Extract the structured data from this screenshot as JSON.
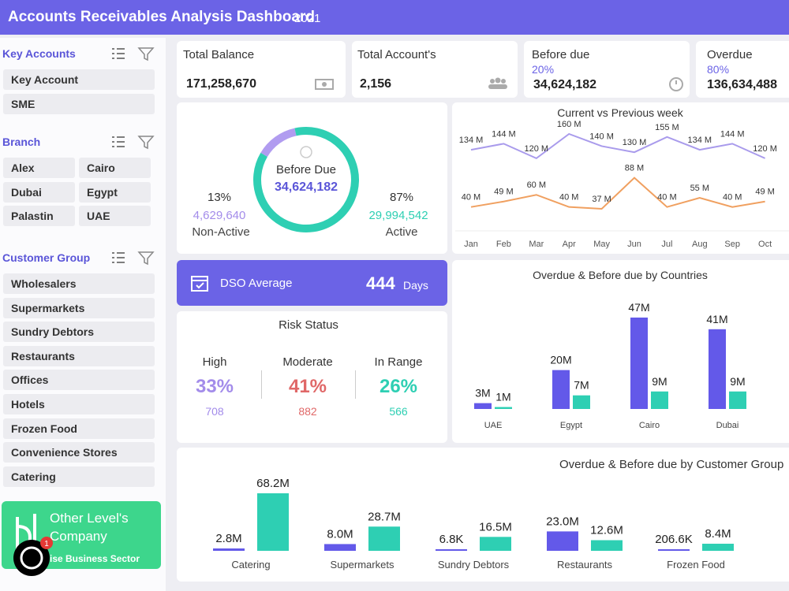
{
  "header": {
    "title": "Accounts Receivables Analysis Dashboard",
    "year": "2021"
  },
  "filters": [
    {
      "title": "Key Accounts",
      "items": [
        "Key Account",
        "SME"
      ]
    },
    {
      "title": "Branch",
      "items": [
        "Alex",
        "Cairo",
        "Dubai",
        "Egypt",
        "Palastin",
        "UAE"
      ]
    },
    {
      "title": "Customer Group",
      "items": [
        "Wholesalers",
        "Supermarkets",
        "Sundry Debtors",
        "Restaurants",
        "Offices",
        "Hotels",
        "Frozen Food",
        "Convenience Stores",
        "Catering"
      ]
    }
  ],
  "brand": {
    "name_line1": "Other Level's",
    "name_line2": "Company",
    "tagline": "ise Business Sector"
  },
  "chat": {
    "badge": "1"
  },
  "kpis": [
    {
      "label": "Total Balance",
      "value": "171,258,670"
    },
    {
      "label": "Total Account's",
      "value": "2,156"
    },
    {
      "label": "Before due",
      "share": "20%",
      "value": "34,624,182"
    },
    {
      "label": "Overdue",
      "share": "80%",
      "value": "136,634,488"
    }
  ],
  "dso": {
    "label": "DSO Average",
    "value": "444",
    "unit": "Days"
  },
  "risk": {
    "title": "Risk Status",
    "levels": [
      {
        "label": "High",
        "share": "33%",
        "count": "708",
        "color": "#a38cea"
      },
      {
        "label": "Moderate",
        "share": "41%",
        "count": "882",
        "color": "#e06868"
      },
      {
        "label": "In Range",
        "share": "26%",
        "count": "566",
        "color": "#2ecfb3"
      }
    ]
  },
  "chart_data": [
    {
      "type": "donut",
      "center_title": "Before Due",
      "center_value": "34,624,182",
      "categories": [
        "Non-Active",
        "Active"
      ],
      "values": [
        13,
        87
      ],
      "value_labels": [
        "13%",
        "87%"
      ],
      "amounts": [
        "4,629,640",
        "29,994,542"
      ],
      "colors": [
        "#b19cf0",
        "#2ecfb3"
      ]
    },
    {
      "type": "line",
      "title": "Current vs Previous week",
      "categories": [
        "Jan",
        "Feb",
        "Mar",
        "Apr",
        "May",
        "Jun",
        "Jul",
        "Aug",
        "Sep",
        "Oct"
      ],
      "series": [
        {
          "color": "#a99bec",
          "values": [
            134,
            144,
            120,
            160,
            140,
            130,
            155,
            134,
            144,
            120
          ],
          "value_labels": [
            "134 M",
            "144 M",
            "120 M",
            "160 M",
            "140 M",
            "130 M",
            "155 M",
            "134 M",
            "144 M",
            "120 M"
          ]
        },
        {
          "color": "#f0a060",
          "values": [
            40,
            49,
            60,
            40,
            37,
            88,
            40,
            55,
            40,
            49
          ],
          "value_labels": [
            "40 M",
            "49 M",
            "60 M",
            "40 M",
            "37 M",
            "88 M",
            "40 M",
            "55 M",
            "40 M",
            "49 M"
          ]
        }
      ]
    },
    {
      "type": "bar",
      "title": "Overdue & Before due by Countries",
      "categories": [
        "UAE",
        "Egypt",
        "Cairo",
        "Dubai"
      ],
      "series": [
        {
          "color": "#6359e9",
          "values": [
            3,
            20,
            47,
            41
          ],
          "value_labels": [
            "3M",
            "20M",
            "47M",
            "41M"
          ]
        },
        {
          "color": "#2ecfb3",
          "values": [
            1,
            7,
            9,
            9
          ],
          "value_labels": [
            "1M",
            "7M",
            "9M",
            "9M"
          ]
        }
      ]
    },
    {
      "type": "bar",
      "title": "Overdue & Before due by Customer Group",
      "categories": [
        "Catering",
        "Supermarkets",
        "Sundry Debtors",
        "Restaurants",
        "Frozen Food"
      ],
      "series": [
        {
          "color": "#6359e9",
          "values": [
            2800000,
            8000000,
            6800,
            23000000,
            206600
          ],
          "value_labels": [
            "2.8M",
            "8.0M",
            "6.8K",
            "23.0M",
            "206.6K"
          ]
        },
        {
          "color": "#2ecfb3",
          "values": [
            68200000,
            28700000,
            16500000,
            12600000,
            8400000
          ],
          "value_labels": [
            "68.2M",
            "28.7M",
            "16.5M",
            "12.6M",
            "8.4M"
          ]
        }
      ]
    }
  ]
}
